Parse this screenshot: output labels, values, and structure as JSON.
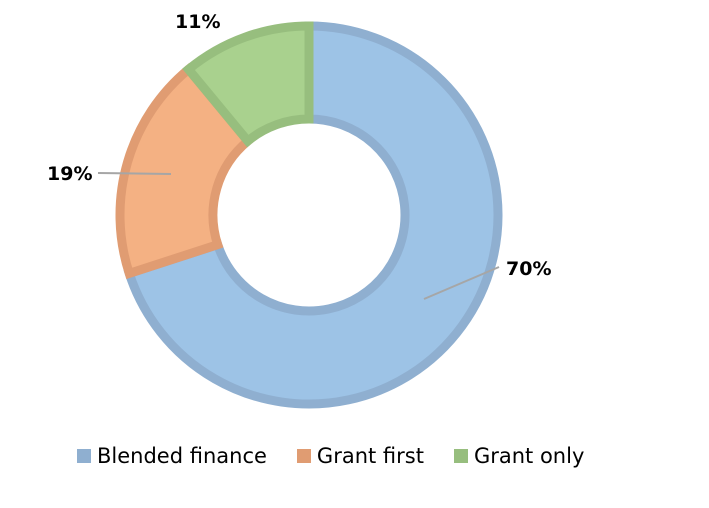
{
  "chart_data": {
    "type": "pie",
    "variant": "donut",
    "title": "",
    "categories": [
      "Blended finance",
      "Grant first",
      "Grant only"
    ],
    "values": [
      70,
      19,
      11
    ],
    "unit": "%",
    "data_labels": [
      "70%",
      "19%",
      "11%"
    ],
    "colors": {
      "fill": [
        "#9DC3E6",
        "#F4B183",
        "#A9D18E"
      ],
      "border": [
        "#8FAFD0",
        "#E09C72",
        "#97BE7E"
      ]
    },
    "start_angle_deg": 0,
    "direction": "clockwise",
    "legend_position": "bottom"
  },
  "legend": {
    "items": [
      {
        "label": "Blended finance",
        "color": "#8FAFD0"
      },
      {
        "label": "Grant first",
        "color": "#E09C72"
      },
      {
        "label": "Grant only",
        "color": "#97BE7E"
      }
    ]
  },
  "labels": {
    "blended": "70%",
    "grant_first": "19%",
    "grant_only": "11%"
  }
}
